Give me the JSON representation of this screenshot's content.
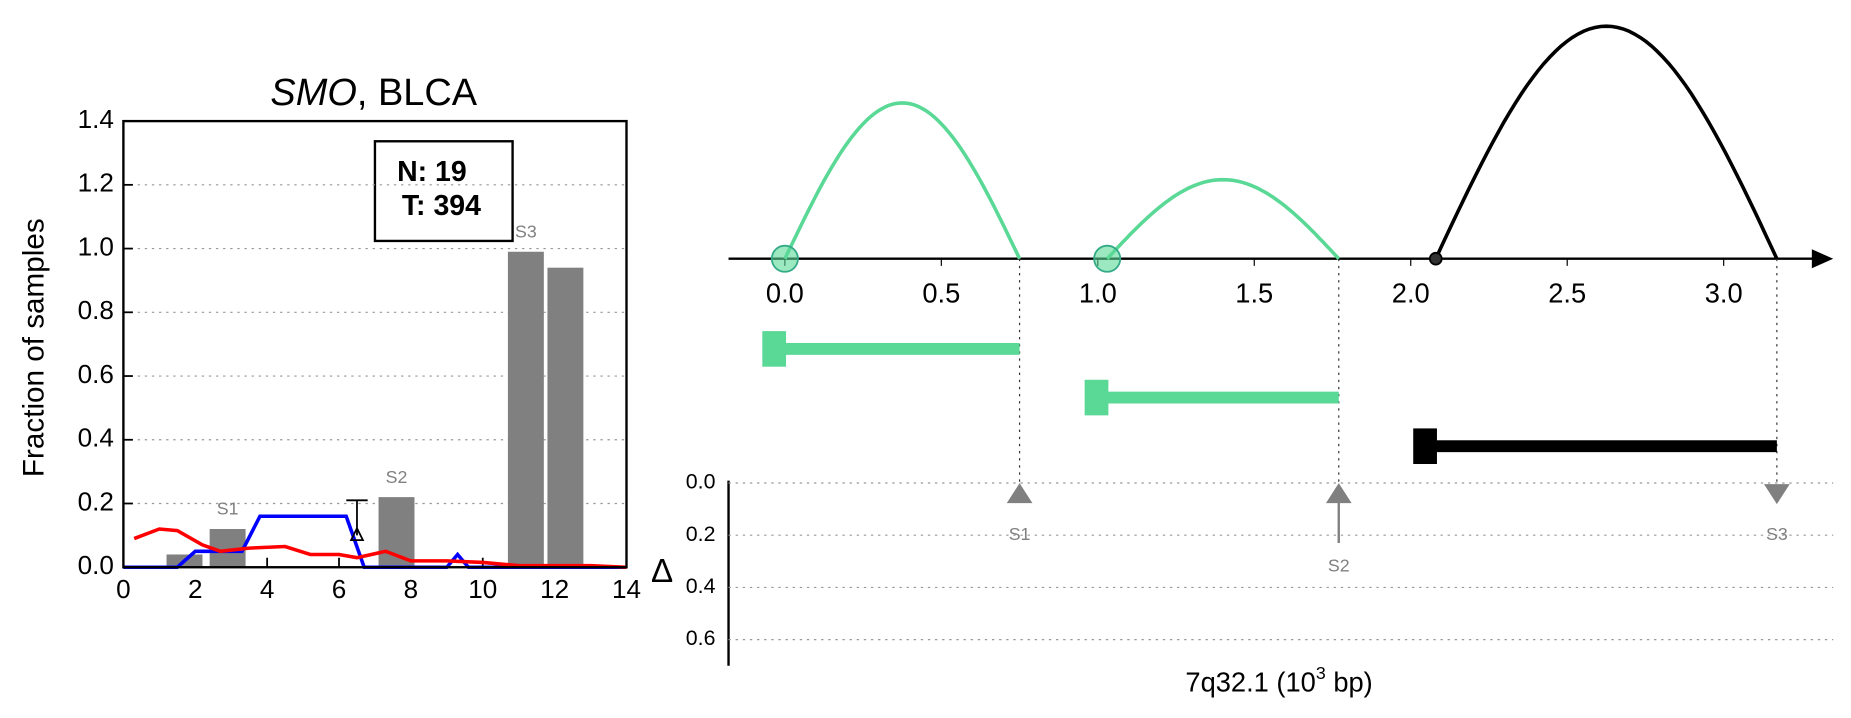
{
  "chart_data": [
    {
      "type": "bar_line",
      "title_parts": [
        "SMO",
        ", BLCA"
      ],
      "ylabel": "Fraction of samples",
      "xlim": [
        0,
        14
      ],
      "xticks": [
        0,
        2,
        4,
        6,
        8,
        10,
        12,
        14
      ],
      "ylim": [
        0,
        1.4
      ],
      "yticks": [
        {
          "value": 0,
          "label": "0.0"
        },
        0.2,
        0.4,
        0.6,
        0.8,
        {
          "value": 1,
          "label": "1.0"
        },
        1.2,
        1.4
      ],
      "grid": true,
      "box": [
        "N: 19",
        "T: 394"
      ],
      "bars": {
        "color": "#808080",
        "x0": [
          1.2,
          2.4,
          7.1,
          10.7,
          11.8
        ],
        "x1": [
          2.2,
          3.4,
          8.1,
          11.7,
          12.8
        ],
        "values": [
          0.04,
          0.12,
          0.22,
          0.99,
          0.94
        ],
        "labels": [
          null,
          "S1",
          "S2",
          "S3",
          null
        ]
      },
      "errorbar": {
        "x": 6.5,
        "value": 0.1,
        "error": 0.11
      },
      "series": [
        {
          "color": "#0000ff",
          "x": [
            0,
            1.5,
            2,
            3.3,
            3.8,
            6.2,
            6.7,
            9,
            9.3,
            9.6,
            14
          ],
          "values": [
            0,
            0,
            0.05,
            0.05,
            0.16,
            0.16,
            0,
            0,
            0.04,
            0,
            0
          ]
        },
        {
          "color": "#ff0000",
          "x": [
            0.3,
            1,
            1.5,
            2.2,
            2.7,
            3.5,
            4.5,
            5.2,
            6,
            6.5,
            7.3,
            8,
            9,
            10,
            11,
            13,
            14
          ],
          "values": [
            0.09,
            0.12,
            0.115,
            0.07,
            0.05,
            0.06,
            0.065,
            0.04,
            0.04,
            0.03,
            0.05,
            0.02,
            0.02,
            0.015,
            0.005,
            0.005,
            0
          ]
        }
      ]
    },
    {
      "type": "arc",
      "xlim": [
        -0.18,
        3.35
      ],
      "xticks": [
        {
          "value": 0,
          "label": "0.0"
        },
        0.5,
        {
          "value": 1,
          "label": "1.0"
        },
        1.5,
        {
          "value": 2,
          "label": "2.0"
        },
        2.5,
        {
          "value": 3,
          "label": "3.0"
        }
      ],
      "xlabel_parts": [
        "7q32.1 (10",
        "3",
        " bp)"
      ],
      "arcs": {
        "start": [
          0,
          1.03,
          2.08
        ],
        "end": [
          0.75,
          1.77,
          3.17
        ],
        "height": [
          0.67,
          0.34,
          1
        ],
        "color": [
          "#5ad896",
          "#5ad896",
          "#000000"
        ]
      },
      "delta": {
        "ylabel": "Δ",
        "ylim": [
          0,
          0.7
        ],
        "yticks": [
          {
            "value": 0,
            "label": "0.0"
          },
          0.2,
          0.4,
          0.6
        ],
        "labels": [
          "S1",
          "S2",
          "S3"
        ],
        "x": [
          0.75,
          1.77,
          3.17
        ],
        "values": [
          0.04,
          0.23,
          0.03
        ],
        "direction": [
          "up",
          "up",
          "down"
        ]
      }
    }
  ]
}
